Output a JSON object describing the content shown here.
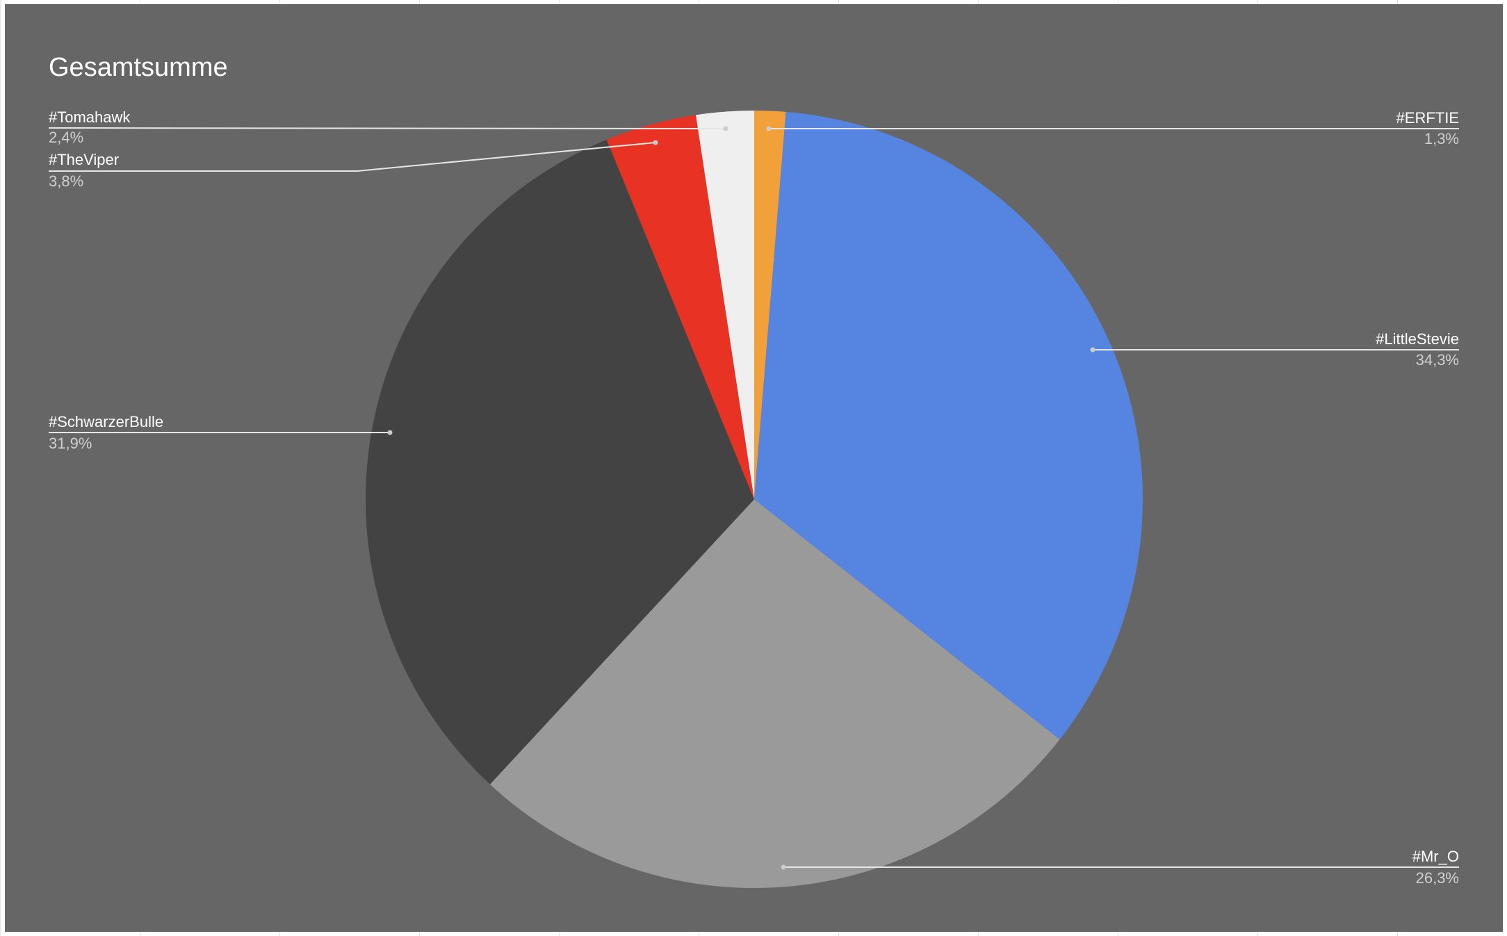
{
  "chart_data": {
    "type": "pie",
    "title": "Gesamtsumme",
    "start_angle_deg": 0,
    "direction": "clockwise",
    "background": "#666666",
    "slices": [
      {
        "label": "#ERFTIE",
        "value": 1.3,
        "display": "1,3%",
        "color": "#f2a03a"
      },
      {
        "label": "#LittleStevie",
        "value": 34.3,
        "display": "34,3%",
        "color": "#5585e0"
      },
      {
        "label": "#Mr_O",
        "value": 26.3,
        "display": "26,3%",
        "color": "#9a9a9a"
      },
      {
        "label": "#SchwarzerBulle",
        "value": 31.9,
        "display": "31,9%",
        "color": "#434343"
      },
      {
        "label": "#TheViper",
        "value": 3.8,
        "display": "3,8%",
        "color": "#e83224"
      },
      {
        "label": "#Tomahawk",
        "value": 2.4,
        "display": "2,4%",
        "color": "#efefef"
      }
    ]
  }
}
